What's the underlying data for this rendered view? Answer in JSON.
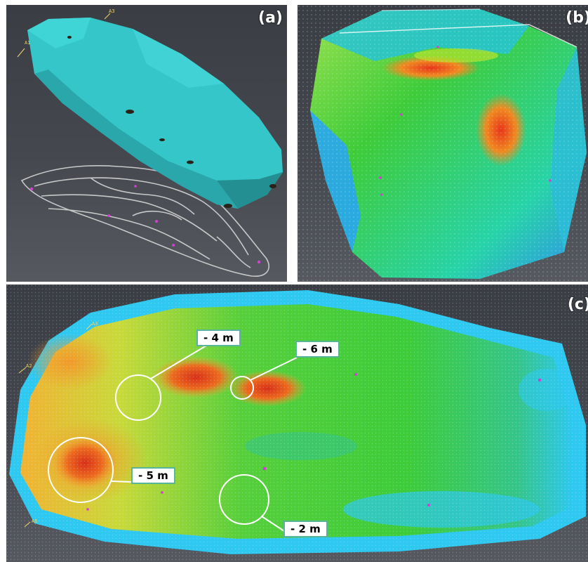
{
  "panels": {
    "a": {
      "label": "(a)",
      "markers": [
        "A3",
        "A1"
      ]
    },
    "b": {
      "label": "(b)"
    },
    "c": {
      "label": "(c)",
      "markers": [
        "A3",
        "A2",
        "A5"
      ]
    }
  },
  "annotations": [
    "- 4 m",
    "- 6 m",
    "- 5 m",
    "- 2 m"
  ],
  "colors": {
    "background": "#3d4046",
    "surface_model": "#34c6c8",
    "callout_border": "#58b59a",
    "deep": "#e04a14",
    "shallow": "#2ec8f0",
    "mid": "#3ecc3a"
  }
}
